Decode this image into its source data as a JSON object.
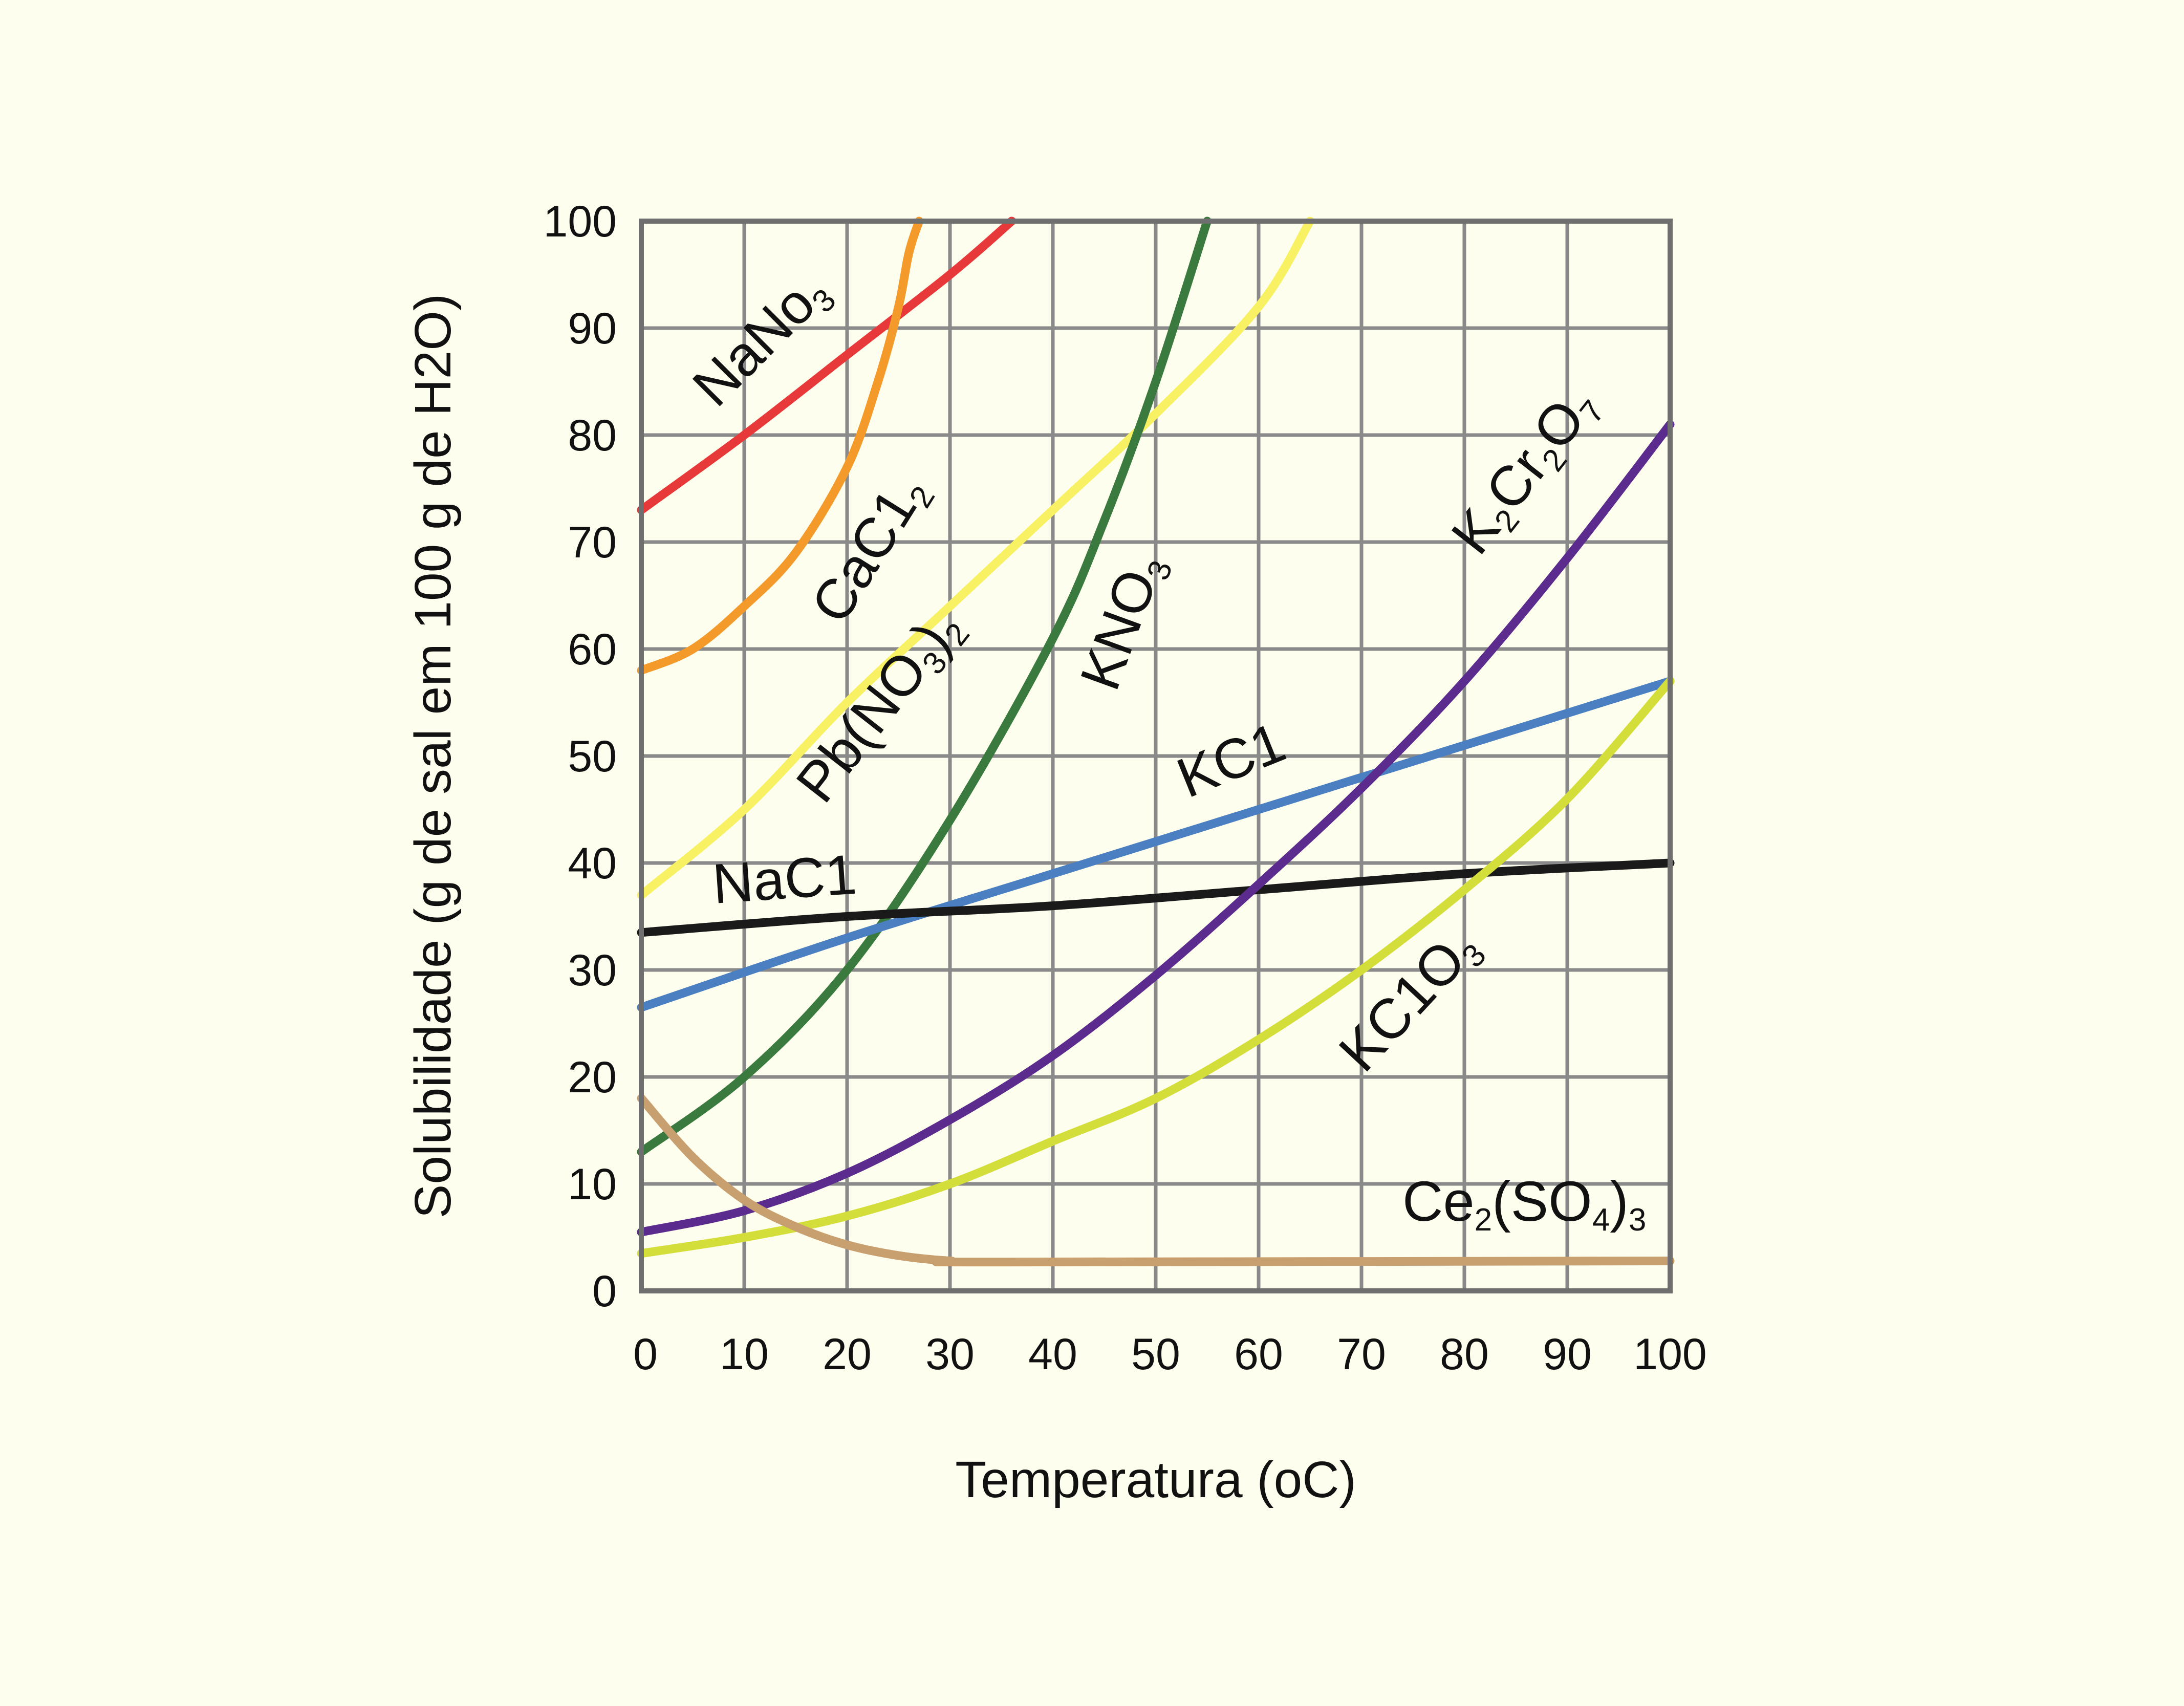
{
  "chart_data": {
    "type": "line",
    "title": "",
    "xlabel": "Temperatura (oC)",
    "ylabel": "Solubilidade (g de sal em 100 g de H2O)",
    "xlim": [
      0,
      100
    ],
    "ylim": [
      0,
      100
    ],
    "grid": true,
    "x_ticks": [
      "0",
      "10",
      "20",
      "30",
      "40",
      "50",
      "60",
      "70",
      "80",
      "90",
      "100"
    ],
    "y_ticks": [
      "0",
      "10",
      "20",
      "30",
      "40",
      "50",
      "60",
      "70",
      "80",
      "90",
      "100"
    ],
    "series": [
      {
        "label": "NaNo3",
        "color": "#e8393a",
        "x": [
          0,
          10,
          20,
          30,
          36
        ],
        "y": [
          73,
          80,
          87.5,
          95,
          100
        ]
      },
      {
        "label": "CaC12",
        "color": "#f39a2b",
        "x": [
          0,
          5,
          10,
          15,
          20,
          23,
          25,
          26,
          27
        ],
        "y": [
          58,
          60,
          64,
          69,
          77,
          85,
          92,
          97,
          100
        ]
      },
      {
        "label": "Pb(NO3)2",
        "color": "#f7f163",
        "x": [
          0,
          10,
          20,
          30,
          40,
          50,
          60,
          65
        ],
        "y": [
          37,
          45,
          55,
          64,
          73,
          82,
          92,
          100
        ]
      },
      {
        "label": "KNO3",
        "color": "#3a7a3e",
        "x": [
          0,
          10,
          20,
          30,
          40,
          45,
          50,
          55
        ],
        "y": [
          13,
          20,
          30,
          44,
          61,
          72,
          85,
          100
        ]
      },
      {
        "label": "KC1",
        "color": "#4a7fc1",
        "x": [
          0,
          20,
          40,
          60,
          80,
          100
        ],
        "y": [
          26.5,
          33,
          39,
          45,
          51,
          57
        ]
      },
      {
        "label": "NaC1",
        "color": "#1a1a1a",
        "x": [
          0,
          20,
          40,
          60,
          80,
          100
        ],
        "y": [
          33.5,
          35,
          36,
          37.5,
          39,
          40
        ]
      },
      {
        "label": "K2Cr2O7",
        "color": "#5b2c8e",
        "x": [
          0,
          10,
          20,
          30,
          40,
          50,
          60,
          70,
          80,
          90,
          100
        ],
        "y": [
          5.5,
          7.5,
          11,
          16,
          22,
          29.5,
          38,
          47,
          57,
          68.5,
          81
        ]
      },
      {
        "label": "KC1O3",
        "color": "#d4de3a",
        "x": [
          0,
          10,
          20,
          30,
          40,
          50,
          60,
          70,
          80,
          90,
          100
        ],
        "y": [
          3.5,
          5,
          7,
          10,
          14,
          18,
          23.5,
          30,
          37.5,
          46,
          57
        ]
      },
      {
        "label": "Ce2(SO4)3",
        "color": "#c8a070",
        "x": [
          0,
          5,
          10,
          15,
          20,
          25,
          30,
          35,
          100
        ],
        "y": [
          18,
          12.5,
          8.5,
          6,
          4.3,
          3.3,
          2.8,
          2.7,
          2.8
        ]
      }
    ]
  }
}
